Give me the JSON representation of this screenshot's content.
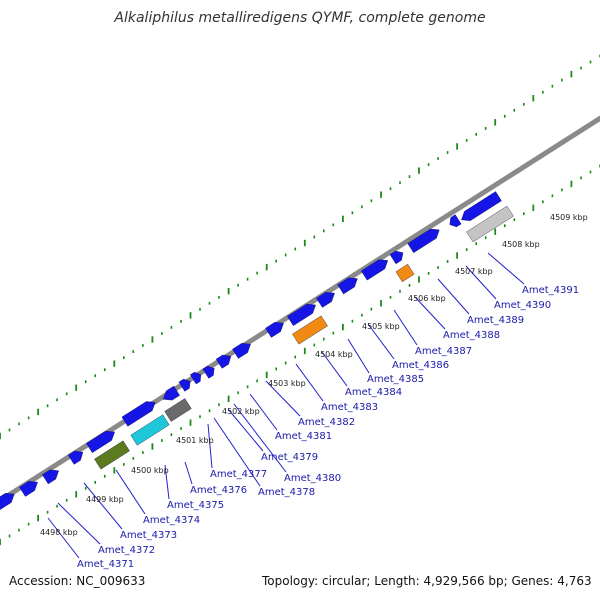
{
  "title": "Alkaliphilus metalliredigens QYMF, complete genome",
  "footer": {
    "accession": "Accession: NC_009633",
    "topology": "Topology: circular; Length: 4,929,566 bp; Genes: 4,763"
  },
  "kbp_ticks": [
    "4498 kbp",
    "4499 kbp",
    "4500 kbp",
    "4501 kbp",
    "4502 kbp",
    "4503 kbp",
    "4504 kbp",
    "4505 kbp",
    "4506 kbp",
    "4507 kbp",
    "4508 kbp",
    "4509 kbp"
  ],
  "genes": [
    "Amet_4371",
    "Amet_4372",
    "Amet_4373",
    "Amet_4374",
    "Amet_4375",
    "Amet_4376",
    "Amet_4377",
    "Amet_4378",
    "Amet_4379",
    "Amet_4380",
    "Amet_4381",
    "Amet_4382",
    "Amet_4383",
    "Amet_4384",
    "Amet_4385",
    "Amet_4386",
    "Amet_4387",
    "Amet_4388",
    "Amet_4389",
    "Amet_4390",
    "Amet_4391"
  ],
  "colors": {
    "backbone": "#8a8a8a",
    "cds": "#1515e6",
    "ticks": "#1a8a1a",
    "olive": "#5c7a1e",
    "cyan": "#1ec8d8",
    "dark_gray": "#6a6a6a",
    "orange": "#f08a12",
    "light_gray": "#c4c4c4",
    "leader": "#2020cc"
  }
}
